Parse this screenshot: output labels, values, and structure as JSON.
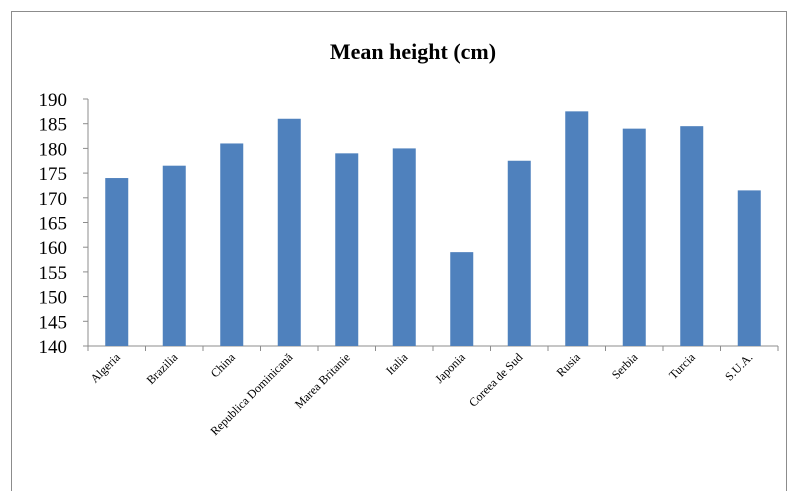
{
  "chart_data": {
    "type": "bar",
    "title": "Mean height (cm)",
    "xlabel": "",
    "ylabel": "",
    "categories": [
      "Algeria",
      "Brazilia",
      "China",
      "Republica Dominicană",
      "Marea Britanie",
      "Italia",
      "Japonia",
      "Coreea de Sud",
      "Rusia",
      "Serbia",
      "Turcia",
      "S.U.A."
    ],
    "values": [
      174,
      176.5,
      181,
      186,
      179,
      180,
      159,
      177.5,
      187.5,
      184,
      184.5,
      171.5
    ],
    "ylim": [
      140,
      190
    ],
    "yticks": [
      140,
      145,
      150,
      155,
      160,
      165,
      170,
      175,
      180,
      185,
      190
    ],
    "grid": false,
    "legend": "none",
    "bar_color": "#4f81bd"
  }
}
